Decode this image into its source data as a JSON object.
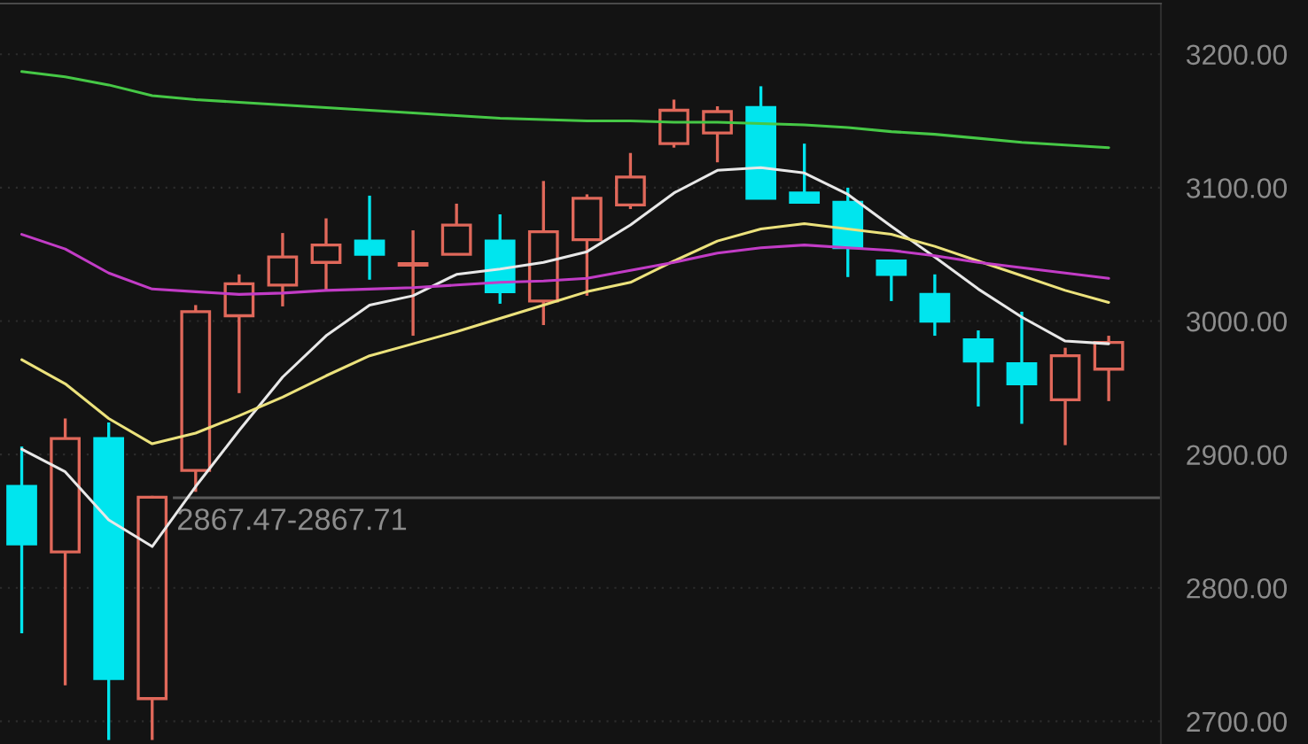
{
  "chart_data": {
    "type": "candlestick",
    "categories": [
      null,
      null,
      null,
      null,
      null,
      null,
      null,
      null,
      null,
      null,
      null,
      null,
      null,
      null,
      null,
      null,
      null,
      null,
      null,
      null,
      null,
      null,
      null,
      null,
      null,
      null
    ],
    "ohlc": [
      [
        2876,
        2906,
        2766,
        2833
      ],
      [
        2827,
        2927,
        2727,
        2912
      ],
      [
        2912,
        2924,
        2686,
        2732
      ],
      [
        2717,
        2869,
        2686,
        2868
      ],
      [
        2888,
        3012,
        2872,
        3007
      ],
      [
        3004,
        3035,
        2946,
        3028
      ],
      [
        3027,
        3066,
        3011,
        3048
      ],
      [
        3044,
        3077,
        3023,
        3057
      ],
      [
        3060,
        3094,
        3031,
        3050
      ],
      [
        3042,
        3068,
        2989,
        3043
      ],
      [
        3050,
        3088,
        3050,
        3072
      ],
      [
        3060,
        3080,
        3013,
        3022
      ],
      [
        3015,
        3105,
        2997,
        3067
      ],
      [
        3061,
        3095,
        3019,
        3092
      ],
      [
        3087,
        3126,
        3084,
        3108
      ],
      [
        3133,
        3166,
        3130,
        3158
      ],
      [
        3141,
        3161,
        3119,
        3157
      ],
      [
        3160,
        3176,
        3092,
        3092
      ],
      [
        3096,
        3133,
        3088,
        3089
      ],
      [
        3089,
        3100,
        3033,
        3055
      ],
      [
        3045,
        3046,
        3015,
        3035
      ],
      [
        3020,
        3035,
        2989,
        3000
      ],
      [
        2986,
        2993,
        2936,
        2970
      ],
      [
        2968,
        3007,
        2923,
        2953
      ],
      [
        2941,
        2980,
        2907,
        2974
      ],
      [
        2964,
        2989,
        2940,
        2984
      ]
    ],
    "colors": [
      "#00e5ee",
      "#e0685a",
      "#00e5ee",
      "#e0685a",
      "#e0685a",
      "#e0685a",
      "#e0685a",
      "#e0685a",
      "#00e5ee",
      "#e0685a",
      "#e0685a",
      "#00e5ee",
      "#e0685a",
      "#e0685a",
      "#e0685a",
      "#e0685a",
      "#e0685a",
      "#00e5ee",
      "#00e5ee",
      "#00e5ee",
      "#00e5ee",
      "#00e5ee",
      "#00e5ee",
      "#00e5ee",
      "#e0685a",
      "#e0685a"
    ],
    "series": [
      {
        "type": "line",
        "color": "#e8e8e8",
        "values": [
          2904,
          2887,
          2851,
          2831,
          2876,
          2918,
          2958,
          2989,
          3012,
          3019,
          3035,
          3039,
          3044,
          3052,
          3072,
          3096,
          3113,
          3115,
          3111,
          3095,
          3071,
          3048,
          3024,
          3003,
          2985,
          2983
        ]
      },
      {
        "type": "line",
        "color": "#ece27c",
        "values": [
          2971,
          2953,
          2927,
          2908,
          2916,
          2929,
          2943,
          2959,
          2974,
          2983,
          2992,
          3002,
          3012,
          3022,
          3029,
          3045,
          3060,
          3069,
          3073,
          3069,
          3065,
          3056,
          3045,
          3034,
          3023,
          3014
        ]
      },
      {
        "type": "line",
        "color": "#c23cc6",
        "values": [
          3065,
          3054,
          3036,
          3024,
          3022,
          3020,
          3021,
          3023,
          3024,
          3025,
          3027,
          3029,
          3030,
          3032,
          3038,
          3044,
          3051,
          3055,
          3057,
          3055,
          3053,
          3049,
          3044,
          3040,
          3036,
          3032
        ]
      },
      {
        "type": "line",
        "color": "#46c846",
        "values": [
          3187,
          3183,
          3177,
          3169,
          3166,
          3164,
          3162,
          3160,
          3158,
          3156,
          3154,
          3152,
          3151,
          3150,
          3150,
          3149,
          3149,
          3148,
          3147,
          3145,
          3142,
          3140,
          3137,
          3134,
          3132,
          3130
        ]
      }
    ],
    "ylim": [
      2683,
      3238
    ],
    "yticks": [
      {
        "value": 2700,
        "label": "2700.00"
      },
      {
        "value": 2800,
        "label": "2800.00"
      },
      {
        "value": 2900,
        "label": "2900.00"
      },
      {
        "value": 3000,
        "label": "3000.00"
      },
      {
        "value": 3100,
        "label": "3100.00"
      },
      {
        "value": 3200,
        "label": "3200.00"
      }
    ],
    "bands": [
      {
        "axis": "y",
        "from": 2867.47,
        "to": 2867.71,
        "label": "2867.47-2867.71",
        "color": "#5a5a5a"
      }
    ],
    "grid": "y",
    "tick_labels": "y"
  }
}
